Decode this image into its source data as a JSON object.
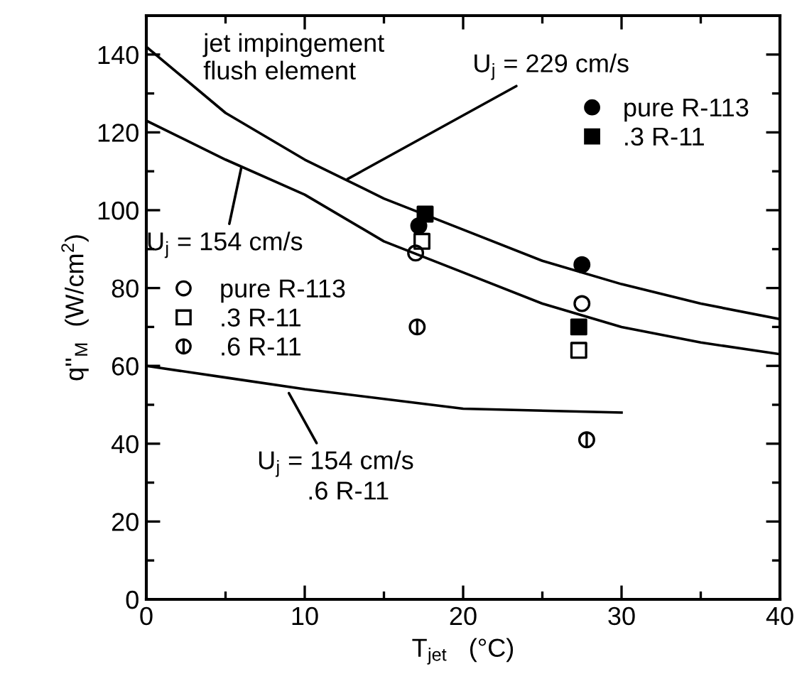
{
  "chart_data": {
    "type": "scatter",
    "xlabel": "T$_{jet}$   (°C)",
    "ylabel": "q''$_{M}$  (W/cm$^{2}$)",
    "xlim": [
      0,
      40
    ],
    "xticks": [
      0,
      10,
      20,
      30,
      40
    ],
    "ylim": [
      0,
      150
    ],
    "yticks": [
      0,
      20,
      40,
      60,
      80,
      100,
      120,
      140
    ],
    "grid": false,
    "legend": "top right",
    "series": [
      {
        "name": "pure R-113",
        "color": "#000000",
        "marker": "circle",
        "x": [
          17.2,
          27.5
        ],
        "values": [
          96,
          86
        ]
      },
      {
        "name": ".3 R-11",
        "color": "#000000",
        "marker": "square",
        "x": [
          17.6,
          27.3
        ],
        "values": [
          99,
          70
        ]
      },
      {
        "name": "pure R-113",
        "color": "#000000",
        "marker": "circle",
        "x": [
          17.0,
          27.5
        ],
        "values": [
          89,
          76
        ]
      },
      {
        "name": ".3 R-11",
        "color": "#000000",
        "marker": "square",
        "x": [
          17.4,
          27.3
        ],
        "values": [
          92,
          64
        ]
      },
      {
        "name": ".6 R-11",
        "color": "#000000",
        "marker": "cross",
        "x": [
          17.1,
          27.8
        ],
        "values": [
          70,
          41
        ]
      },
      {
        "type": "line",
        "color": "#000000",
        "marker": "none",
        "x": [
          0,
          5,
          10,
          15,
          20,
          25,
          30,
          35,
          40
        ],
        "values": [
          142,
          125,
          113,
          103,
          95,
          87,
          81,
          76,
          72
        ]
      },
      {
        "type": "line",
        "color": "#000000",
        "marker": "none",
        "x": [
          0,
          5,
          10,
          15,
          20,
          25,
          30,
          35,
          40
        ],
        "values": [
          123,
          113,
          104,
          92,
          84,
          76,
          70,
          66,
          63
        ]
      },
      {
        "type": "line",
        "color": "#000000",
        "marker": "none",
        "x": [
          0,
          5,
          10,
          20,
          30
        ],
        "values": [
          60,
          57,
          54,
          49,
          48
        ]
      }
    ],
    "annotations": [
      "jet impingement\nflush element",
      {
        "text": "U$_{j}$ = 229 cm/s",
        "x": 12.7,
        "y": 108
      },
      {
        "text": "U$_{j}$ = 154 cm/s",
        "x": 6,
        "y": 111
      },
      {
        "text": "U$_{j}$ = 154 cm/s\n       .6 R-11",
        "x": 9,
        "y": 53
      }
    ]
  }
}
